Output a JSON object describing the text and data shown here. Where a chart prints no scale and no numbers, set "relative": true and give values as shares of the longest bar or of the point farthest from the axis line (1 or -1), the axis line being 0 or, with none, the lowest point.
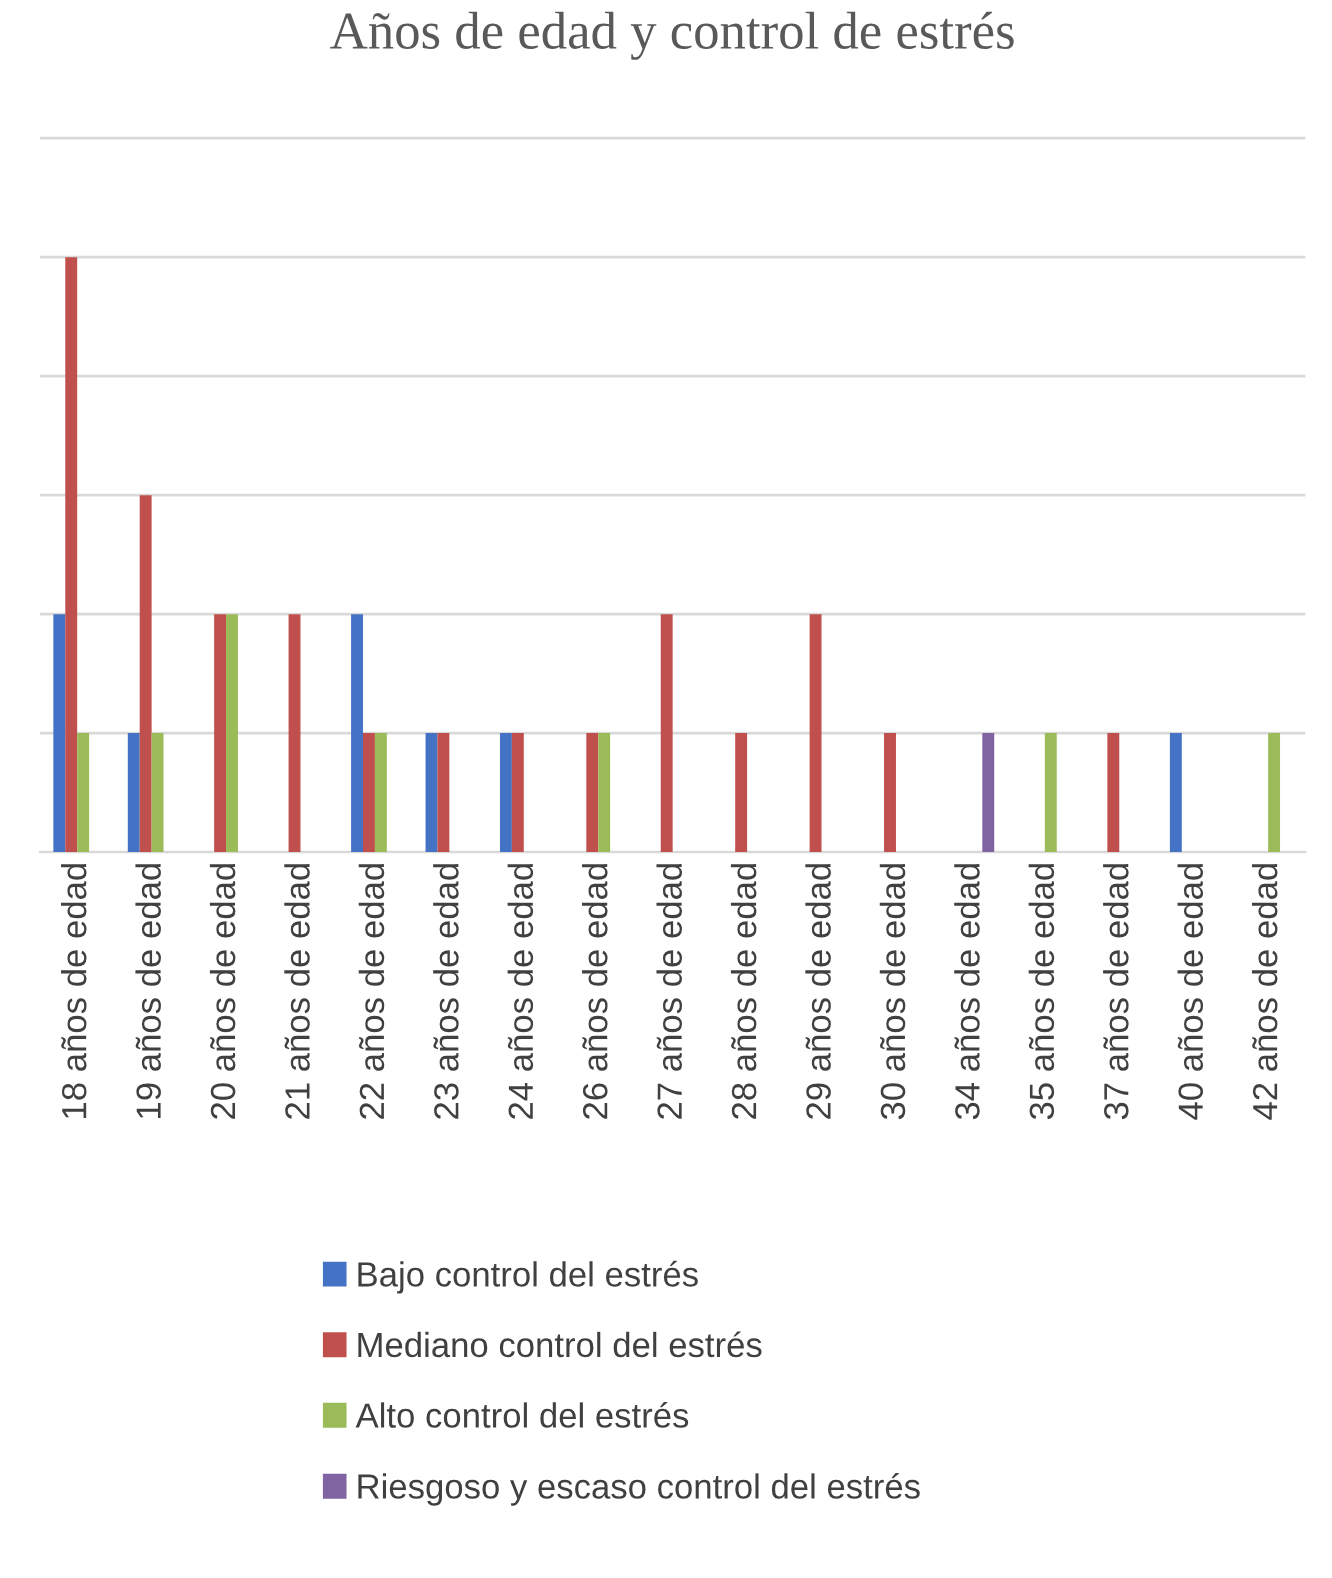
{
  "chart_data": {
    "type": "bar",
    "title": "Años de edad y control de estrés",
    "relative": true,
    "grid": "y",
    "legend": "bottom",
    "categories": [
      "18 años de edad",
      "19 años de edad",
      "20 años de edad",
      "21 años de edad",
      "22 años de edad",
      "23 años de edad",
      "24 años de edad",
      "26 años de edad",
      "27 años de edad",
      "28 años de edad",
      "29 años de edad",
      "30 años de edad",
      "34 años de edad",
      "35 años de edad",
      "37 años de edad",
      "40 años de edad",
      "42 años de edad"
    ],
    "series": [
      {
        "name": "Bajo control del estrés",
        "color": "#4472c4",
        "values": [
          0.4,
          0.2,
          0,
          0,
          0.4,
          0.2,
          0.2,
          0,
          0,
          0,
          0,
          0,
          0,
          0,
          0,
          0.2,
          0
        ]
      },
      {
        "name": "Mediano control del estrés",
        "color": "#c0504d",
        "values": [
          1,
          0.6,
          0.4,
          0.4,
          0.2,
          0.2,
          0.2,
          0.2,
          0.4,
          0.2,
          0.4,
          0.2,
          0,
          0,
          0.2,
          0,
          0
        ]
      },
      {
        "name": "Alto control del estrés",
        "color": "#9bbb59",
        "values": [
          0.2,
          0.2,
          0.4,
          0,
          0.2,
          0,
          0,
          0.2,
          0,
          0,
          0,
          0,
          0,
          0.2,
          0,
          0,
          0.2
        ]
      },
      {
        "name": "Riesgoso y escaso control del estrés",
        "color": "#8064a2",
        "values": [
          0,
          0,
          0,
          0,
          0,
          0,
          0,
          0,
          0,
          0,
          0,
          0,
          0.2,
          0,
          0,
          0,
          0
        ]
      }
    ]
  }
}
